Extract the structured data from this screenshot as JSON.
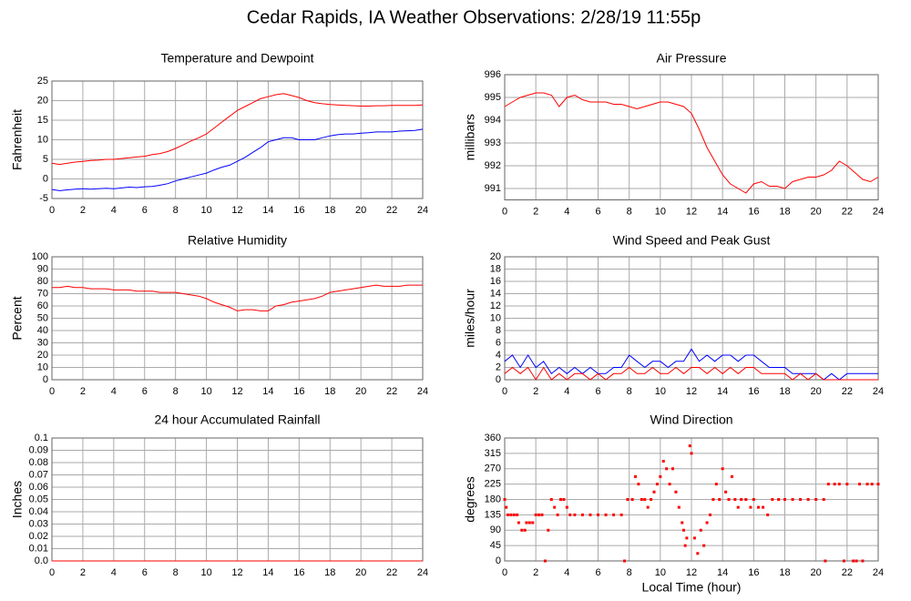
{
  "title": "Cedar Rapids, IA Weather Observations: 2/28/19 11:55p",
  "chart_data": [
    {
      "type": "line",
      "title": "Temperature and Dewpoint",
      "ylabel": "Fahrenheit",
      "x": [
        0,
        0.5,
        1,
        1.5,
        2,
        2.5,
        3,
        3.5,
        4,
        4.5,
        5,
        5.5,
        6,
        6.5,
        7,
        7.5,
        8,
        8.5,
        9,
        9.5,
        10,
        10.5,
        11,
        11.5,
        12,
        12.5,
        13,
        13.5,
        14,
        14.5,
        15,
        15.5,
        16,
        16.5,
        17,
        17.5,
        18,
        18.5,
        19,
        19.5,
        20,
        20.5,
        21,
        21.5,
        22,
        22.5,
        23,
        23.5,
        24
      ],
      "series": [
        {
          "color": "#ff0000",
          "values": [
            4,
            3.7,
            4,
            4.3,
            4.5,
            4.7,
            4.8,
            5,
            5,
            5.2,
            5.4,
            5.6,
            5.8,
            6.2,
            6.5,
            7,
            7.8,
            8.7,
            9.7,
            10.5,
            11.5,
            13,
            14.5,
            16,
            17.5,
            18.5,
            19.5,
            20.5,
            21,
            21.5,
            21.8,
            21.3,
            20.8,
            20,
            19.5,
            19.2,
            19,
            18.9,
            18.8,
            18.7,
            18.6,
            18.6,
            18.7,
            18.7,
            18.8,
            18.8,
            18.8,
            18.8,
            18.9
          ]
        },
        {
          "color": "#0000ff",
          "values": [
            -2.7,
            -3,
            -2.8,
            -2.6,
            -2.5,
            -2.6,
            -2.5,
            -2.4,
            -2.5,
            -2.3,
            -2.1,
            -2.2,
            -2,
            -1.9,
            -1.6,
            -1.2,
            -0.5,
            0,
            0.5,
            1,
            1.5,
            2.3,
            3,
            3.5,
            4.5,
            5.5,
            6.8,
            8,
            9.5,
            10,
            10.5,
            10.5,
            10,
            10,
            10,
            10.5,
            11,
            11.3,
            11.5,
            11.5,
            11.7,
            11.8,
            12,
            12,
            12,
            12.2,
            12.3,
            12.4,
            12.7
          ]
        }
      ],
      "xlim": [
        0,
        24
      ],
      "xticks": [
        0,
        2,
        4,
        6,
        8,
        10,
        12,
        14,
        16,
        18,
        20,
        22,
        24
      ],
      "ylim": [
        -5,
        25
      ],
      "yticks": [
        -5,
        0,
        5,
        10,
        15,
        20,
        25
      ],
      "grid": true
    },
    {
      "type": "line",
      "title": "Air Pressure",
      "ylabel": "millibars",
      "x": [
        0,
        0.5,
        1,
        1.5,
        2,
        2.5,
        3,
        3.5,
        4,
        4.5,
        5,
        5.5,
        6,
        6.5,
        7,
        7.5,
        8,
        8.5,
        9,
        9.5,
        10,
        10.5,
        11,
        11.5,
        12,
        12.5,
        13,
        13.5,
        14,
        14.5,
        15,
        15.5,
        16,
        16.5,
        17,
        17.5,
        18,
        18.5,
        19,
        19.5,
        20,
        20.5,
        21,
        21.5,
        22,
        22.5,
        23,
        23.5,
        24
      ],
      "series": [
        {
          "color": "#ff0000",
          "values": [
            994.6,
            994.8,
            995,
            995.1,
            995.2,
            995.2,
            995.1,
            994.6,
            995,
            995.1,
            994.9,
            994.8,
            994.8,
            994.8,
            994.7,
            994.7,
            994.6,
            994.5,
            994.6,
            994.7,
            994.8,
            994.8,
            994.7,
            994.6,
            994.3,
            993.6,
            992.8,
            992.2,
            991.6,
            991.2,
            991,
            990.8,
            991.2,
            991.3,
            991.1,
            991.1,
            991,
            991.3,
            991.4,
            991.5,
            991.5,
            991.6,
            991.8,
            992.2,
            992,
            991.7,
            991.4,
            991.3,
            991.5
          ]
        }
      ],
      "xlim": [
        0,
        24
      ],
      "xticks": [
        0,
        2,
        4,
        6,
        8,
        10,
        12,
        14,
        16,
        18,
        20,
        22,
        24
      ],
      "ylim": [
        990.5,
        996
      ],
      "yticks": [
        991,
        992,
        993,
        994,
        995,
        996
      ],
      "grid": true
    },
    {
      "type": "line",
      "title": "Relative Humidity",
      "ylabel": "Percent",
      "x": [
        0,
        0.5,
        1,
        1.5,
        2,
        2.5,
        3,
        3.5,
        4,
        4.5,
        5,
        5.5,
        6,
        6.5,
        7,
        7.5,
        8,
        8.5,
        9,
        9.5,
        10,
        10.5,
        11,
        11.5,
        12,
        12.5,
        13,
        13.5,
        14,
        14.5,
        15,
        15.5,
        16,
        16.5,
        17,
        17.5,
        18,
        18.5,
        19,
        19.5,
        20,
        20.5,
        21,
        21.5,
        22,
        22.5,
        23,
        23.5,
        24
      ],
      "series": [
        {
          "color": "#ff0000",
          "values": [
            75,
            75,
            76,
            75,
            75,
            74,
            74,
            74,
            73,
            73,
            73,
            72,
            72,
            72,
            71,
            71,
            71,
            70,
            69,
            68,
            66,
            63,
            61,
            59,
            56,
            57,
            57,
            56,
            56,
            60,
            61,
            63,
            64,
            65,
            66,
            68,
            71,
            72,
            73,
            74,
            75,
            76,
            77,
            76,
            76,
            76,
            77,
            77,
            77
          ]
        }
      ],
      "xlim": [
        0,
        24
      ],
      "xticks": [
        0,
        2,
        4,
        6,
        8,
        10,
        12,
        14,
        16,
        18,
        20,
        22,
        24
      ],
      "ylim": [
        0,
        100
      ],
      "yticks": [
        0,
        10,
        20,
        30,
        40,
        50,
        60,
        70,
        80,
        90,
        100
      ],
      "grid": true
    },
    {
      "type": "line",
      "title": "Wind Speed and Peak Gust",
      "ylabel": "miles/hour",
      "x": [
        0,
        0.5,
        1,
        1.5,
        2,
        2.5,
        3,
        3.5,
        4,
        4.5,
        5,
        5.5,
        6,
        6.5,
        7,
        7.5,
        8,
        8.5,
        9,
        9.5,
        10,
        10.5,
        11,
        11.5,
        12,
        12.5,
        13,
        13.5,
        14,
        14.5,
        15,
        15.5,
        16,
        16.5,
        17,
        17.5,
        18,
        18.5,
        19,
        19.5,
        20,
        20.5,
        21,
        21.5,
        22,
        22.5,
        23,
        23.5,
        24
      ],
      "series": [
        {
          "color": "#0000ff",
          "values": [
            3,
            4,
            2,
            4,
            2,
            3,
            1,
            2,
            1,
            2,
            1,
            2,
            1,
            1,
            2,
            2,
            4,
            3,
            2,
            3,
            3,
            2,
            3,
            3,
            5,
            3,
            4,
            3,
            4,
            4,
            3,
            4,
            4,
            3,
            2,
            2,
            2,
            1,
            1,
            1,
            1,
            0,
            1,
            0,
            1,
            1,
            1,
            1,
            1
          ]
        },
        {
          "color": "#ff0000",
          "values": [
            1,
            2,
            1,
            2,
            0,
            2,
            0,
            1,
            0,
            1,
            1,
            0,
            1,
            0,
            1,
            1,
            2,
            1,
            1,
            2,
            1,
            1,
            2,
            1,
            2,
            2,
            1,
            2,
            1,
            2,
            1,
            2,
            2,
            1,
            1,
            1,
            1,
            0,
            1,
            0,
            1,
            0,
            0,
            0,
            0,
            0,
            0,
            0,
            0
          ]
        }
      ],
      "xlim": [
        0,
        24
      ],
      "xticks": [
        0,
        2,
        4,
        6,
        8,
        10,
        12,
        14,
        16,
        18,
        20,
        22,
        24
      ],
      "ylim": [
        0,
        20
      ],
      "yticks": [
        0,
        2,
        4,
        6,
        8,
        10,
        12,
        14,
        16,
        18,
        20
      ],
      "grid": true
    },
    {
      "type": "line",
      "title": "24 hour Accumulated Rainfall",
      "ylabel": "Inches",
      "x": [
        0,
        24
      ],
      "series": [
        {
          "color": "#ff0000",
          "values": [
            0,
            0
          ]
        }
      ],
      "xlim": [
        0,
        24
      ],
      "xticks": [
        0,
        2,
        4,
        6,
        8,
        10,
        12,
        14,
        16,
        18,
        20,
        22,
        24
      ],
      "ylim": [
        0,
        0.1
      ],
      "yticks": [
        {
          "value": 0,
          "label": "0.0"
        },
        0.01,
        0.02,
        0.03,
        0.04,
        0.05,
        0.06,
        0.07,
        0.08,
        0.09,
        0.1
      ],
      "grid": true
    },
    {
      "type": "scatter",
      "title": "Wind Direction",
      "ylabel": "degrees",
      "xlabel": "Local Time (hour)",
      "x": [
        0,
        0.1,
        0.2,
        0.4,
        0.6,
        0.8,
        0.9,
        1.1,
        1.3,
        1.4,
        1.6,
        1.8,
        2,
        2.2,
        2.4,
        2.6,
        2.8,
        3,
        3.2,
        3.4,
        3.6,
        3.8,
        4,
        4.2,
        4.5,
        5,
        5.5,
        6,
        6.5,
        7,
        7.5,
        7.7,
        7.9,
        8.2,
        8.4,
        8.6,
        8.8,
        9,
        9.2,
        9.4,
        9.6,
        9.8,
        10,
        10.2,
        10.4,
        10.6,
        10.8,
        11,
        11.2,
        11.4,
        11.5,
        11.6,
        11.7,
        11.9,
        12,
        12.2,
        12.4,
        12.6,
        12.8,
        13,
        13.2,
        13.4,
        13.6,
        13.8,
        14,
        14.2,
        14.4,
        14.6,
        14.8,
        15,
        15.2,
        15.5,
        15.8,
        16,
        16.3,
        16.6,
        16.9,
        17.2,
        17.6,
        18,
        18.5,
        19,
        19.5,
        20,
        20.5,
        20.6,
        20.8,
        21.2,
        21.5,
        21.8,
        22,
        22.4,
        22.6,
        22.8,
        23,
        23.3,
        23.6,
        24
      ],
      "series": [
        {
          "color": "#ff0000",
          "values": [
            180,
            157,
            135,
            135,
            135,
            135,
            112,
            90,
            90,
            112,
            112,
            112,
            135,
            135,
            135,
            0,
            90,
            180,
            157,
            135,
            180,
            180,
            157,
            135,
            135,
            135,
            135,
            135,
            135,
            135,
            135,
            0,
            180,
            180,
            247,
            225,
            180,
            180,
            157,
            180,
            202,
            225,
            247,
            292,
            270,
            225,
            270,
            202,
            157,
            112,
            90,
            45,
            67,
            337,
            315,
            67,
            22,
            90,
            45,
            112,
            135,
            180,
            225,
            180,
            270,
            202,
            180,
            247,
            180,
            157,
            180,
            180,
            157,
            180,
            157,
            157,
            135,
            180,
            180,
            180,
            180,
            180,
            180,
            180,
            180,
            0,
            225,
            225,
            225,
            0,
            225,
            0,
            0,
            225,
            0,
            225,
            225,
            225
          ]
        }
      ],
      "xlim": [
        0,
        24
      ],
      "xticks": [
        0,
        2,
        4,
        6,
        8,
        10,
        12,
        14,
        16,
        18,
        20,
        22,
        24
      ],
      "ylim": [
        0,
        360
      ],
      "yticks": [
        0,
        45,
        90,
        135,
        180,
        225,
        270,
        315,
        360
      ],
      "grid": true
    }
  ]
}
